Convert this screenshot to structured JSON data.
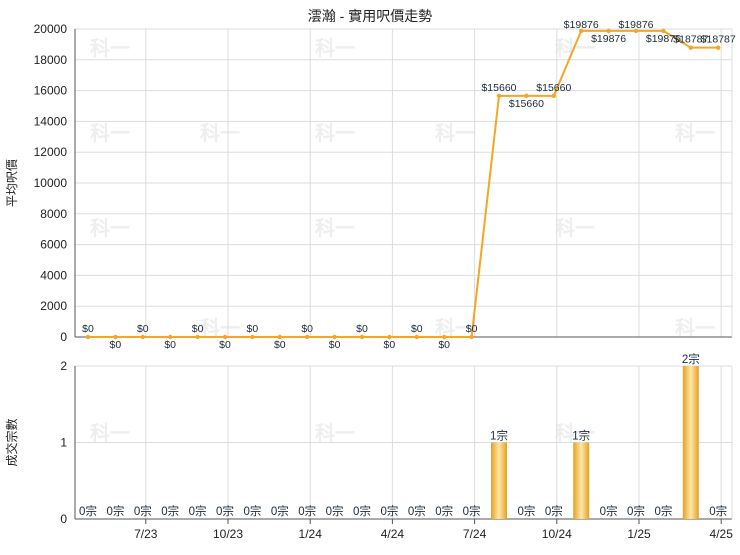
{
  "page_title": "澐瀚 - 實用呎價走勢",
  "watermark_text": "科一",
  "colors": {
    "line": "#f5a623",
    "bar_edge": "#e6a020",
    "bar_mid": "#ffe7a8",
    "grid": "#dddddd",
    "axis": "#555555",
    "text": "#222222",
    "label_text": "#1a2a3a"
  },
  "chart_data": [
    {
      "type": "line",
      "ylabel": "平均呎價",
      "ylim": [
        0,
        20000
      ],
      "yticks": [
        0,
        2000,
        4000,
        6000,
        8000,
        10000,
        12000,
        14000,
        16000,
        18000,
        20000
      ],
      "grid": true,
      "series": [
        {
          "values": [
            0,
            0,
            0,
            0,
            0,
            0,
            0,
            0,
            0,
            0,
            0,
            0,
            0,
            0,
            0,
            15660,
            15660,
            15660,
            19876,
            19876,
            19876,
            19876,
            18787,
            18787
          ],
          "labels": [
            "$0",
            "$0",
            "$0",
            "$0",
            "$0",
            "$0",
            "$0",
            "$0",
            "$0",
            "$0",
            "$0",
            "$0",
            "$0",
            "$0",
            "$0",
            "$15660",
            "$15660",
            "$15660",
            "$19876",
            "$19876",
            "$19876",
            "$19876",
            "$18787",
            "$18787"
          ]
        }
      ]
    },
    {
      "type": "bar",
      "ylabel": "成交宗數",
      "ylim": [
        0,
        2
      ],
      "yticks": [
        0,
        1,
        2
      ],
      "grid": true,
      "x_tick_labels": [
        "7/23",
        "10/23",
        "1/24",
        "4/24",
        "7/24",
        "10/24",
        "1/25",
        "4/25"
      ],
      "series": [
        {
          "values": [
            0,
            0,
            0,
            0,
            0,
            0,
            0,
            0,
            0,
            0,
            0,
            0,
            0,
            0,
            0,
            1,
            0,
            0,
            1,
            0,
            0,
            0,
            2,
            0
          ],
          "labels": [
            "0宗",
            "0宗",
            "0宗",
            "0宗",
            "0宗",
            "0宗",
            "0宗",
            "0宗",
            "0宗",
            "0宗",
            "0宗",
            "0宗",
            "0宗",
            "0宗",
            "0宗",
            "1宗",
            "0宗",
            "0宗",
            "1宗",
            "0宗",
            "0宗",
            "0宗",
            "2宗",
            "0宗"
          ]
        }
      ]
    }
  ]
}
